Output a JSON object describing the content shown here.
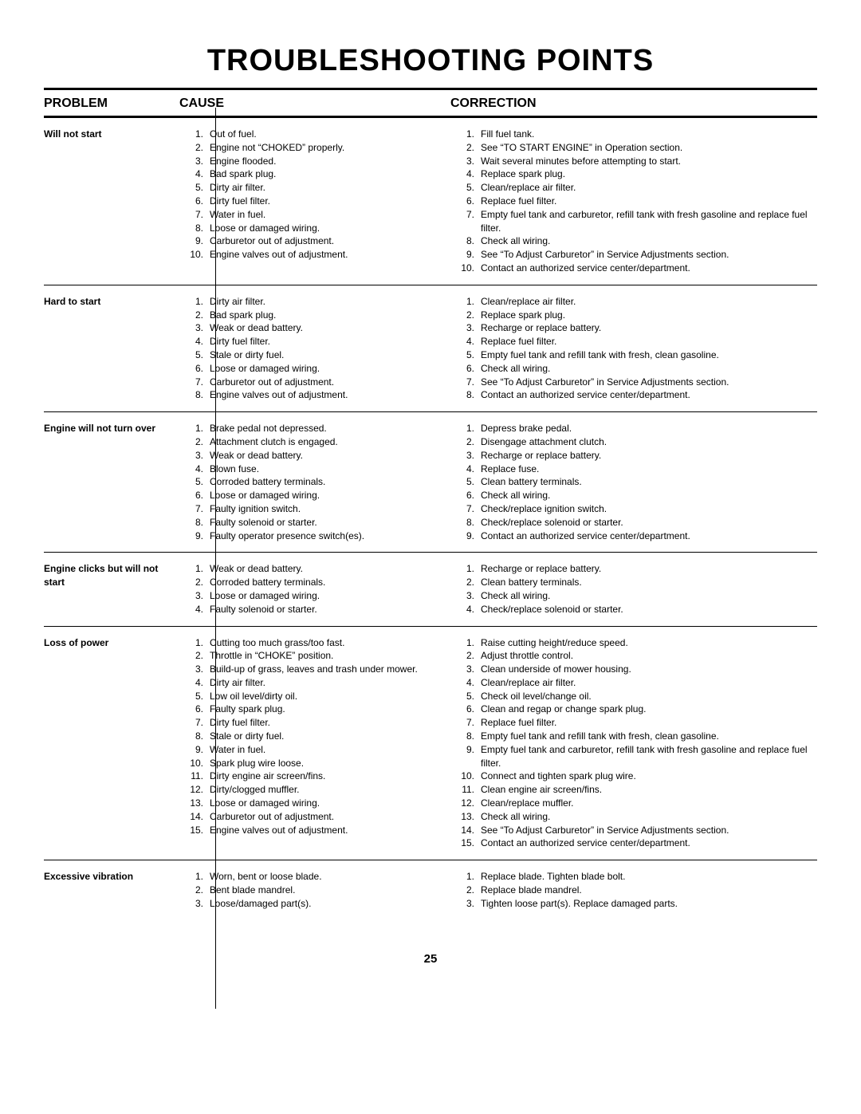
{
  "title": "TROUBLESHOOTING POINTS",
  "columns": {
    "problem": "PROBLEM",
    "cause": "CAUSE",
    "correction": "CORRECTION"
  },
  "page_number": "25",
  "sections": [
    {
      "problem": "Will not start",
      "cause": [
        "Out of fuel.",
        "Engine not “CHOKED” properly.",
        "Engine flooded.",
        "Bad spark plug.",
        "Dirty air filter.",
        "Dirty fuel filter.",
        "Water in fuel.",
        "Loose or damaged wiring.",
        "Carburetor out of adjustment.",
        "Engine valves out of adjustment."
      ],
      "correction": [
        "Fill fuel tank.",
        "See “TO START ENGINE” in Operation section.",
        "Wait several minutes before attempting to start.",
        "Replace spark plug.",
        "Clean/replace air filter.",
        "Replace fuel filter.",
        "Empty fuel tank and carburetor, refill tank with fresh gasoline and replace fuel filter.",
        "Check all wiring.",
        "See “To Adjust Carburetor” in Service Adjustments section.",
        "Contact an authorized service center/department."
      ]
    },
    {
      "problem": "Hard to start",
      "cause": [
        "Dirty air filter.",
        "Bad spark plug.",
        "Weak or dead battery.",
        "Dirty fuel filter.",
        "Stale or dirty fuel.",
        "Loose or damaged wiring.",
        "Carburetor out of adjustment.",
        "Engine valves out of adjustment."
      ],
      "correction": [
        "Clean/replace air filter.",
        "Replace spark plug.",
        "Recharge or replace battery.",
        "Replace fuel filter.",
        "Empty fuel tank and refill tank with fresh, clean gasoline.",
        "Check all wiring.",
        "See “To Adjust Carburetor” in Service Adjustments section.",
        "Contact an authorized service center/department."
      ]
    },
    {
      "problem": "Engine will not turn over",
      "cause": [
        "Brake pedal not depressed.",
        "Attachment clutch is engaged.",
        "Weak or dead battery.",
        "Blown fuse.",
        "Corroded battery terminals.",
        "Loose or damaged wiring.",
        "Faulty ignition switch.",
        "Faulty solenoid or starter.",
        "Faulty operator presence switch(es)."
      ],
      "correction": [
        "Depress brake pedal.",
        "Disengage attachment clutch.",
        "Recharge or replace battery.",
        "Replace fuse.",
        "Clean battery terminals.",
        "Check all wiring.",
        "Check/replace ignition switch.",
        "Check/replace solenoid or starter.",
        "Contact an authorized service center/department."
      ]
    },
    {
      "problem": "Engine clicks but will not start",
      "cause": [
        "Weak or dead battery.",
        "Corroded battery terminals.",
        "Loose or damaged wiring.",
        "Faulty solenoid or starter."
      ],
      "correction": [
        "Recharge or replace battery.",
        "Clean battery terminals.",
        "Check all wiring.",
        "Check/replace solenoid or starter."
      ]
    },
    {
      "problem": "Loss of power",
      "cause": [
        "Cutting too much grass/too fast.",
        "Throttle in “CHOKE” position.",
        "Build-up of grass, leaves and trash under mower.",
        "Dirty air filter.",
        "Low oil level/dirty oil.",
        "Faulty spark plug.",
        "Dirty fuel filter.",
        "Stale or dirty fuel.",
        "Water in fuel.",
        "Spark plug wire loose.",
        "Dirty engine air screen/fins.",
        "Dirty/clogged muffler.",
        "Loose or damaged wiring.",
        "Carburetor out of adjustment.",
        "Engine valves out of adjustment."
      ],
      "correction": [
        "Raise cutting height/reduce speed.",
        "Adjust throttle control.",
        "Clean underside of mower housing.",
        "Clean/replace air filter.",
        "Check oil level/change oil.",
        "Clean and regap or change spark plug.",
        "Replace fuel filter.",
        "Empty fuel tank and refill tank with fresh, clean gasoline.",
        "Empty fuel tank and carburetor, refill tank with fresh gasoline and replace fuel filter.",
        "Connect and tighten spark plug wire.",
        "Clean engine air screen/fins.",
        "Clean/replace muffler.",
        "Check all wiring.",
        "See “To Adjust Carburetor” in Service Adjustments section.",
        "Contact an authorized service center/department."
      ]
    },
    {
      "problem": "Excessive vibration",
      "cause": [
        "Worn, bent or loose blade.",
        "Bent blade mandrel.",
        "Loose/damaged part(s)."
      ],
      "correction": [
        "Replace blade.  Tighten blade bolt.",
        "Replace blade mandrel.",
        "Tighten loose part(s).  Replace damaged parts."
      ]
    }
  ]
}
